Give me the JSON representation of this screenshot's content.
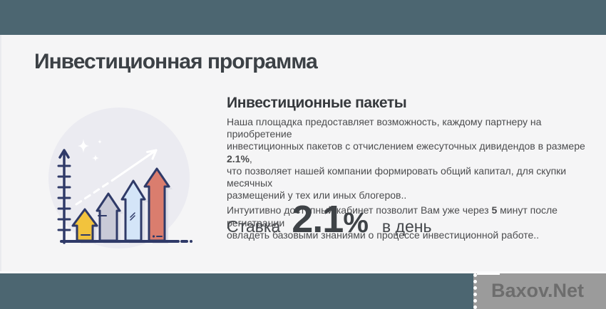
{
  "header": {
    "title": "Инвестиционная программа"
  },
  "section": {
    "heading": "Инвестиционные пакеты",
    "paragraphs": [
      {
        "lines": [
          [
            {
              "t": "Наша площадка предоставляет возможность, каждому партнеру на приобретение"
            }
          ],
          [
            {
              "t": "инвестиционных пакетов с отчислением ежесуточных дивидендов в размере "
            },
            {
              "t": "2.1%",
              "b": true
            },
            {
              "t": ","
            }
          ],
          [
            {
              "t": "что позволяет нашей компании формировать общий капитал, для скупки месячных"
            }
          ],
          [
            {
              "t": "размещений у тех или иных блогеров.."
            }
          ]
        ]
      },
      {
        "lines": [
          [
            {
              "t": "Интуитивно доступный кабинет позволит Вам уже через "
            },
            {
              "t": "5",
              "b": true
            },
            {
              "t": " минут после регистрации"
            }
          ],
          [
            {
              "t": "овладеть базовыми знаниями о процессе инвестиционной работе.."
            }
          ]
        ]
      }
    ],
    "rate": {
      "label": "Ставка",
      "value": "2.1",
      "percent": "%",
      "suffix": "в день"
    }
  },
  "illustration": {
    "name": "ascending-arrows-growth-chart",
    "elements": [
      "axis-with-ticks",
      "trend-arrow",
      "sparkles",
      "yellow-arrow",
      "gray-arrow",
      "blue-arrow",
      "salmon-arrow"
    ]
  },
  "watermark": {
    "text": "Baxov.Net"
  },
  "colors": {
    "top_bar": "#4c6671",
    "bottom_bar": "#4c6671",
    "background": "#f5f5f6",
    "heading_text": "#3c4146",
    "body_text": "#4b4c4e",
    "outline_navy": "#2f3a68",
    "circle_bg": "#ebebf1",
    "arrow_shadow": "#dfe0e8",
    "arrow_yellow": "#f2c33d",
    "arrow_gray": "#c9cad7",
    "arrow_blue": "#d4e5f8",
    "arrow_salmon": "#da7d6e",
    "watermark_box": "#9b9b9b",
    "watermark_text": "#6d6d6d"
  }
}
